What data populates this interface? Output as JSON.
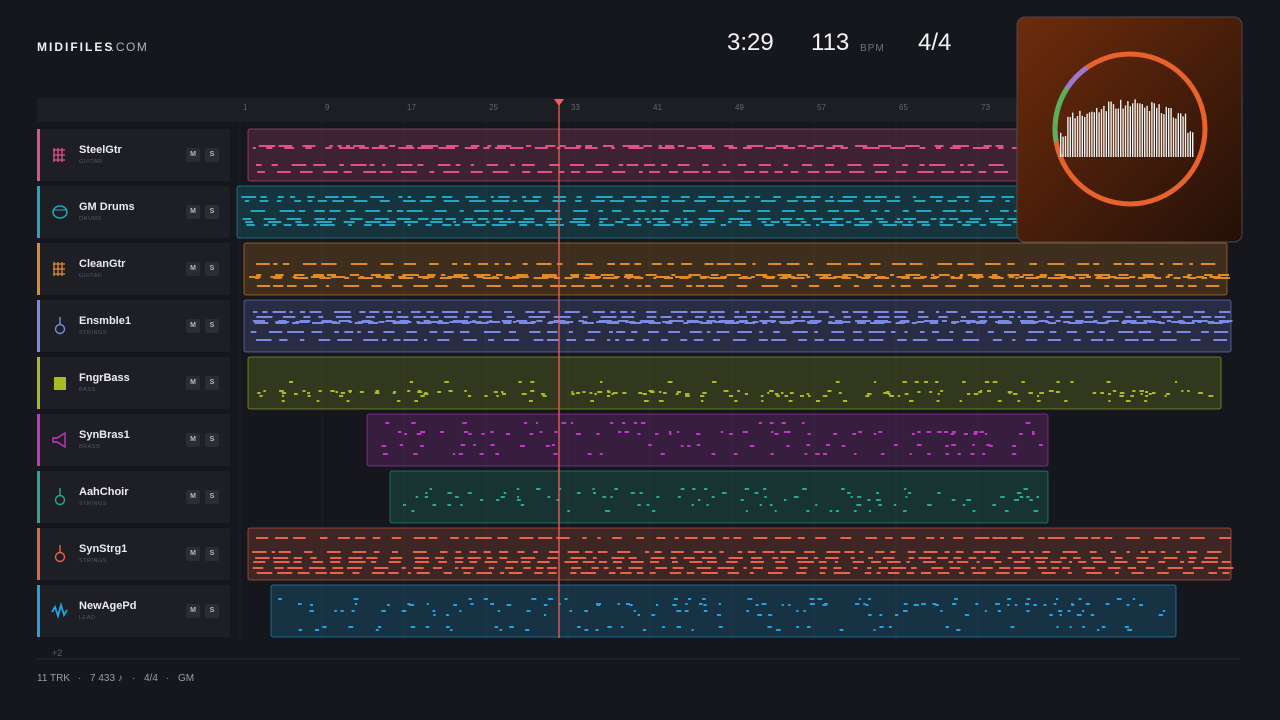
{
  "header": {
    "brand": "MIDIFILES",
    "domain": ".COM",
    "time": "3:29",
    "tempo": "113",
    "tempo_unit": "BPM",
    "meter": "4/4"
  },
  "ruler": [
    1,
    9,
    17,
    25,
    33,
    41,
    49,
    57,
    65,
    73
  ],
  "tracks": [
    {
      "name": "SteelGtr",
      "category": "GUITAR",
      "mute": "M",
      "solo": "S"
    },
    {
      "name": "GM Drums",
      "category": "DRUMS",
      "mute": "M",
      "solo": "S"
    },
    {
      "name": "CleanGtr",
      "category": "GUITAR",
      "mute": "M",
      "solo": "S"
    },
    {
      "name": "Ensmble1",
      "category": "STRINGS",
      "mute": "M",
      "solo": "S"
    },
    {
      "name": "FngrBass",
      "category": "BASS",
      "mute": "M",
      "solo": "S"
    },
    {
      "name": "SynBras1",
      "category": "BRASS",
      "mute": "M",
      "solo": "S"
    },
    {
      "name": "AahChoir",
      "category": "STRINGS",
      "mute": "M",
      "solo": "S"
    },
    {
      "name": "SynStrg1",
      "category": "STRINGS",
      "mute": "M",
      "solo": "S"
    },
    {
      "name": "NewAgePd",
      "category": "LEAD",
      "mute": "M",
      "solo": "S"
    }
  ],
  "more": "+2",
  "footer": {
    "tracks": "11 TRK",
    "notes": "7 433 ♪",
    "meter": "4/4",
    "standard": "GM",
    "separator": "·"
  }
}
